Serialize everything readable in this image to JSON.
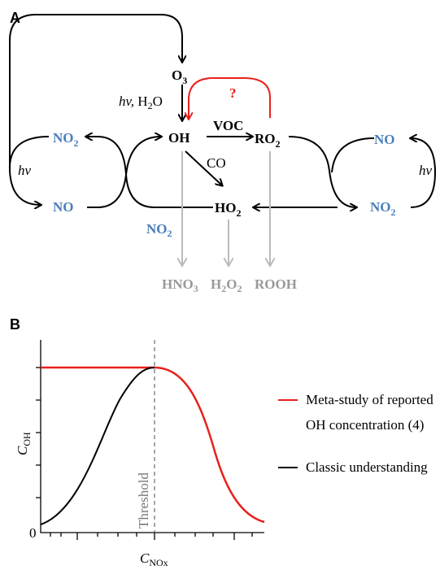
{
  "panel_a": {
    "label": "A",
    "o3": {
      "base": "O",
      "sub": "3"
    },
    "photolysis": {
      "hv": "hv,",
      "base": "H",
      "sub": "2",
      "tail": "O"
    },
    "question": "?",
    "oh": "OH",
    "voc": "VOC",
    "ro2": {
      "base": "RO",
      "sub": "2"
    },
    "co": "CO",
    "ho2": {
      "base": "HO",
      "sub": "2"
    },
    "left_no2": {
      "base": "NO",
      "sub": "2"
    },
    "left_no": "NO",
    "left_hv": "hv",
    "right_no": "NO",
    "right_no2": {
      "base": "NO",
      "sub": "2"
    },
    "right_hv": "hv",
    "sink_no2": {
      "base": "NO",
      "sub": "2"
    },
    "hno3": {
      "base": "HNO",
      "sub": "3"
    },
    "h2o2": {
      "base": "H",
      "sub": "2",
      "base2": "O",
      "sub2": "2"
    },
    "rooh": "ROOH"
  },
  "panel_b": {
    "label": "B",
    "y_label": {
      "base": "C",
      "sub": "OH"
    },
    "x_label": {
      "base": "C",
      "sub": "NOx"
    },
    "zero": "0",
    "threshold": "Threshold",
    "legend": [
      {
        "lines": [
          "Meta-study of reported",
          "OH concentration (4)"
        ],
        "color": "#e8201c"
      },
      {
        "lines": [
          "Classic understanding"
        ],
        "color": "#000000"
      }
    ]
  }
}
